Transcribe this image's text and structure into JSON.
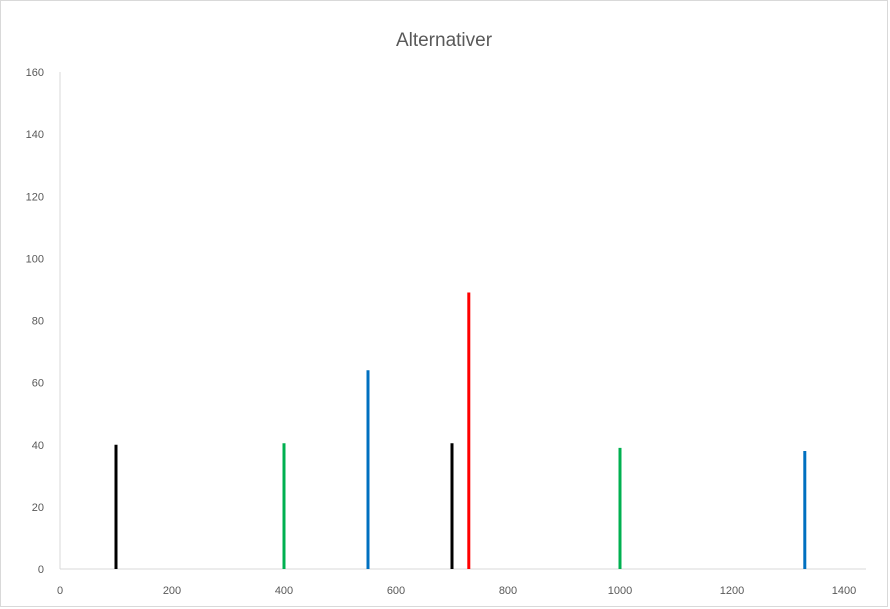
{
  "chart_data": {
    "type": "bar",
    "title": "Alternativer",
    "xlabel": "",
    "ylabel": "",
    "xlim": [
      0,
      1400
    ],
    "ylim": [
      0,
      160
    ],
    "x_ticks": [
      0,
      200,
      400,
      600,
      800,
      1000,
      1200,
      1400
    ],
    "y_ticks": [
      0,
      20,
      40,
      60,
      80,
      100,
      120,
      140,
      160
    ],
    "grid": false,
    "points": [
      {
        "x": 100,
        "y": 40,
        "color": "#000000"
      },
      {
        "x": 400,
        "y": 40.5,
        "color": "#00b050"
      },
      {
        "x": 550,
        "y": 64,
        "color": "#0070c0"
      },
      {
        "x": 700,
        "y": 40.5,
        "color": "#000000"
      },
      {
        "x": 730,
        "y": 89,
        "color": "#ff0000"
      },
      {
        "x": 1000,
        "y": 39,
        "color": "#00b050"
      },
      {
        "x": 1330,
        "y": 38,
        "color": "#0070c0"
      }
    ]
  }
}
